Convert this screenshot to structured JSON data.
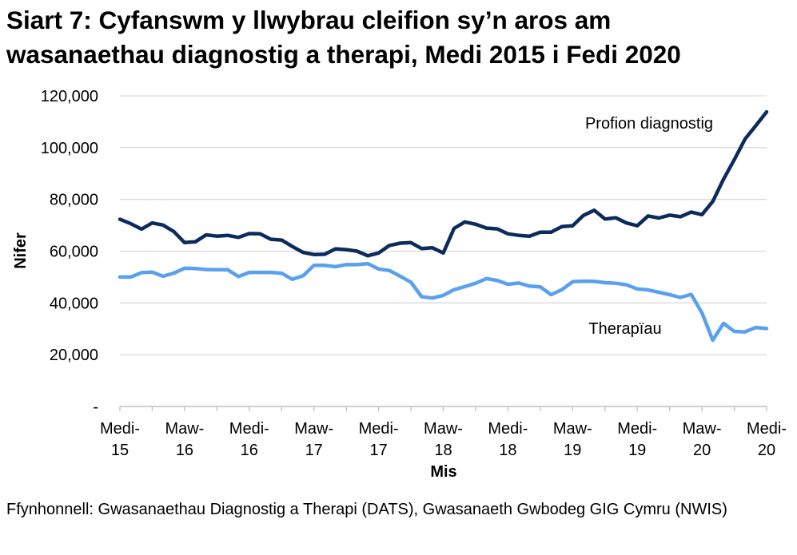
{
  "title_line1": "Siart 7: Cyfanswm y llwybrau cleifion sy’n aros am",
  "title_line2": "wasanaethau diagnostig a therapi, Medi 2015 i Fedi 2020",
  "source_text": "Ffynhonnell: Gwasanaethau Diagnostig a Therapi (DATS), Gwasanaeth Gwbodeg GIG Cymru (NWIS)",
  "colors": {
    "diagnostic": "#0c2a5c",
    "therapy": "#5aa0ee",
    "grid": "#d9d9d9",
    "axis": "#bfbfbf"
  },
  "chart_data": {
    "type": "line",
    "title": "Siart 7: Cyfanswm y llwybrau cleifion sy’n aros am wasanaethau diagnostig a therapi, Medi 2015 i Fedi 2020",
    "xlabel": "Mis",
    "ylabel": "Nifer",
    "ylim": [
      0,
      120000
    ],
    "y_ticks": [
      {
        "value": 0,
        "label": "-"
      },
      {
        "value": 20000,
        "label": "20,000"
      },
      {
        "value": 40000,
        "label": "40,000"
      },
      {
        "value": 60000,
        "label": "60,000"
      },
      {
        "value": 80000,
        "label": "80,000"
      },
      {
        "value": 100000,
        "label": "100,000"
      },
      {
        "value": 120000,
        "label": "120,000"
      }
    ],
    "x_ticks": [
      {
        "index": 0,
        "line1": "Medi-",
        "line2": "15"
      },
      {
        "index": 6,
        "line1": "Maw-",
        "line2": "16"
      },
      {
        "index": 12,
        "line1": "Medi-",
        "line2": "16"
      },
      {
        "index": 18,
        "line1": "Maw-",
        "line2": "17"
      },
      {
        "index": 24,
        "line1": "Medi-",
        "line2": "17"
      },
      {
        "index": 30,
        "line1": "Maw-",
        "line2": "18"
      },
      {
        "index": 36,
        "line1": "Medi-",
        "line2": "18"
      },
      {
        "index": 42,
        "line1": "Maw-",
        "line2": "19"
      },
      {
        "index": 48,
        "line1": "Medi-",
        "line2": "19"
      },
      {
        "index": 54,
        "line1": "Maw-",
        "line2": "20"
      },
      {
        "index": 60,
        "line1": "Medi-",
        "line2": "20"
      }
    ],
    "series": [
      {
        "name": "Profion diagnostig",
        "key": "diagnostic",
        "values": [
          72300,
          70600,
          68500,
          70900,
          70100,
          67600,
          63300,
          63600,
          66300,
          65800,
          66100,
          65300,
          66800,
          66700,
          64600,
          64300,
          61800,
          59500,
          58700,
          58800,
          60900,
          60600,
          60000,
          58200,
          59300,
          62200,
          63100,
          63300,
          61000,
          61300,
          59300,
          68800,
          71300,
          70400,
          68900,
          68600,
          66700,
          66100,
          65800,
          67300,
          67300,
          69500,
          69800,
          73800,
          75800,
          72400,
          72900,
          70900,
          69800,
          73600,
          72800,
          73900,
          73300,
          75100,
          74100,
          79200,
          87800,
          95300,
          103300,
          108500,
          113800
        ]
      },
      {
        "name": "Therapïau",
        "key": "therapy",
        "values": [
          50000,
          50000,
          51700,
          51900,
          50300,
          51500,
          53400,
          53300,
          52900,
          52800,
          52800,
          50200,
          51800,
          51800,
          51800,
          51500,
          49100,
          50500,
          54500,
          54500,
          54000,
          54800,
          54800,
          55200,
          53100,
          52500,
          50300,
          48000,
          42400,
          41900,
          42900,
          45100,
          46300,
          47600,
          49400,
          48700,
          47200,
          47700,
          46500,
          46200,
          43200,
          45100,
          48200,
          48400,
          48300,
          47800,
          47600,
          47000,
          45400,
          45000,
          44100,
          43200,
          42100,
          43300,
          36200,
          25600,
          32100,
          29000,
          28800,
          30500,
          30100
        ]
      }
    ],
    "annotations": [
      {
        "series": "diagnostic",
        "text": "Profion diagnostig"
      },
      {
        "series": "therapy",
        "text": "Therapïau"
      }
    ]
  }
}
